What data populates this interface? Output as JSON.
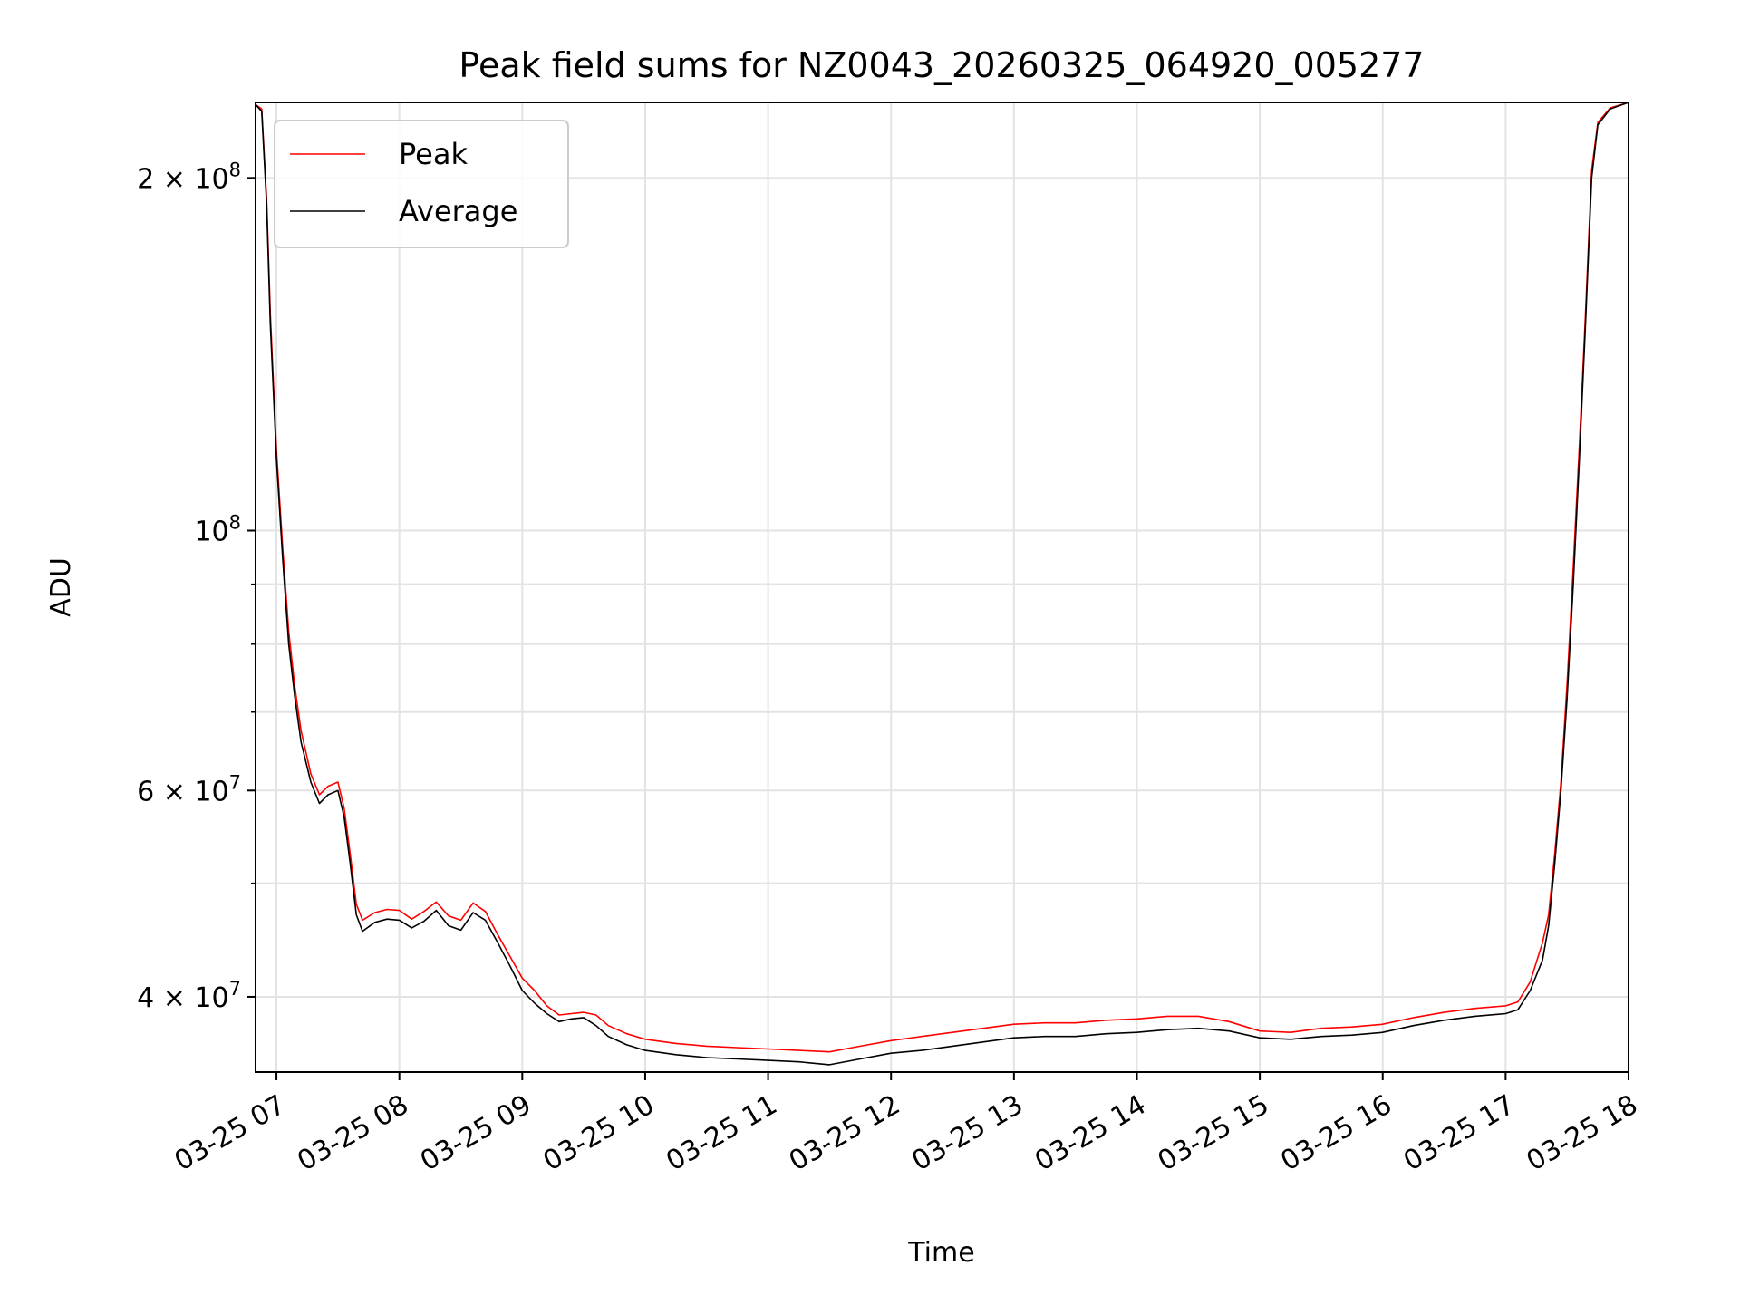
{
  "chart_data": {
    "type": "line",
    "title": "Peak field sums for NZ0043_20260325_064920_005277",
    "xlabel": "Time",
    "ylabel": "ADU",
    "yscale": "log",
    "grid": true,
    "legend_position": "upper-left",
    "x_unit": "hours (day 2026-03-25)",
    "xlim": [
      6.83,
      18.0
    ],
    "ylim": [
      34500000,
      232000000
    ],
    "x_ticks": [
      {
        "value": 7,
        "label": "03-25 07"
      },
      {
        "value": 8,
        "label": "03-25 08"
      },
      {
        "value": 9,
        "label": "03-25 09"
      },
      {
        "value": 10,
        "label": "03-25 10"
      },
      {
        "value": 11,
        "label": "03-25 11"
      },
      {
        "value": 12,
        "label": "03-25 12"
      },
      {
        "value": 13,
        "label": "03-25 13"
      },
      {
        "value": 14,
        "label": "03-25 14"
      },
      {
        "value": 15,
        "label": "03-25 15"
      },
      {
        "value": 16,
        "label": "03-25 16"
      },
      {
        "value": 17,
        "label": "03-25 17"
      },
      {
        "value": 18,
        "label": "03-25 18"
      }
    ],
    "y_major_ticks": [
      {
        "value": 40000000,
        "mantissa": "4",
        "exponent": "7"
      },
      {
        "value": 60000000,
        "mantissa": "6",
        "exponent": "7"
      },
      {
        "value": 100000000,
        "mantissa": "",
        "exponent": "8"
      },
      {
        "value": 200000000,
        "mantissa": "2",
        "exponent": "8"
      }
    ],
    "y_minor_ticks": [
      50000000,
      70000000,
      80000000,
      90000000
    ],
    "tick_base": "10",
    "tick_times": "×",
    "series": [
      {
        "name": "Average",
        "color": "#000000",
        "points": [
          [
            6.83,
            231000000
          ],
          [
            6.88,
            228000000
          ],
          [
            6.92,
            190000000
          ],
          [
            6.95,
            150000000
          ],
          [
            7.0,
            115000000
          ],
          [
            7.05,
            95000000
          ],
          [
            7.1,
            80000000
          ],
          [
            7.15,
            72000000
          ],
          [
            7.2,
            66000000
          ],
          [
            7.28,
            61000000
          ],
          [
            7.35,
            58500000
          ],
          [
            7.42,
            59500000
          ],
          [
            7.5,
            60000000
          ],
          [
            7.55,
            57000000
          ],
          [
            7.6,
            52000000
          ],
          [
            7.65,
            47000000
          ],
          [
            7.7,
            45500000
          ],
          [
            7.8,
            46300000
          ],
          [
            7.9,
            46600000
          ],
          [
            8.0,
            46500000
          ],
          [
            8.1,
            45800000
          ],
          [
            8.2,
            46400000
          ],
          [
            8.3,
            47400000
          ],
          [
            8.4,
            46000000
          ],
          [
            8.5,
            45600000
          ],
          [
            8.6,
            47200000
          ],
          [
            8.7,
            46500000
          ],
          [
            8.8,
            44500000
          ],
          [
            8.9,
            42500000
          ],
          [
            9.0,
            40500000
          ],
          [
            9.1,
            39500000
          ],
          [
            9.2,
            38700000
          ],
          [
            9.3,
            38100000
          ],
          [
            9.4,
            38300000
          ],
          [
            9.5,
            38400000
          ],
          [
            9.6,
            37800000
          ],
          [
            9.7,
            37000000
          ],
          [
            9.85,
            36400000
          ],
          [
            10.0,
            36000000
          ],
          [
            10.25,
            35700000
          ],
          [
            10.5,
            35500000
          ],
          [
            10.75,
            35400000
          ],
          [
            11.0,
            35300000
          ],
          [
            11.25,
            35200000
          ],
          [
            11.5,
            35000000
          ],
          [
            11.75,
            35400000
          ],
          [
            12.0,
            35800000
          ],
          [
            12.25,
            36000000
          ],
          [
            12.5,
            36300000
          ],
          [
            12.75,
            36600000
          ],
          [
            13.0,
            36900000
          ],
          [
            13.25,
            37000000
          ],
          [
            13.5,
            37000000
          ],
          [
            13.75,
            37200000
          ],
          [
            14.0,
            37300000
          ],
          [
            14.25,
            37500000
          ],
          [
            14.5,
            37600000
          ],
          [
            14.75,
            37400000
          ],
          [
            15.0,
            36900000
          ],
          [
            15.25,
            36800000
          ],
          [
            15.5,
            37000000
          ],
          [
            15.75,
            37100000
          ],
          [
            16.0,
            37300000
          ],
          [
            16.25,
            37800000
          ],
          [
            16.5,
            38200000
          ],
          [
            16.75,
            38500000
          ],
          [
            17.0,
            38700000
          ],
          [
            17.1,
            39000000
          ],
          [
            17.2,
            40500000
          ],
          [
            17.3,
            43000000
          ],
          [
            17.35,
            46000000
          ],
          [
            17.4,
            52000000
          ],
          [
            17.45,
            60000000
          ],
          [
            17.5,
            72000000
          ],
          [
            17.55,
            90000000
          ],
          [
            17.6,
            115000000
          ],
          [
            17.65,
            150000000
          ],
          [
            17.7,
            200000000
          ],
          [
            17.75,
            222000000
          ],
          [
            17.85,
            229000000
          ],
          [
            18.0,
            232000000
          ]
        ]
      },
      {
        "name": "Peak",
        "color": "#ff0000",
        "points": [
          [
            6.83,
            231000000
          ],
          [
            6.88,
            229000000
          ],
          [
            6.92,
            192000000
          ],
          [
            6.95,
            153000000
          ],
          [
            7.0,
            117000000
          ],
          [
            7.05,
            97000000
          ],
          [
            7.1,
            82000000
          ],
          [
            7.15,
            73500000
          ],
          [
            7.2,
            67500000
          ],
          [
            7.28,
            62000000
          ],
          [
            7.35,
            59500000
          ],
          [
            7.42,
            60500000
          ],
          [
            7.5,
            61000000
          ],
          [
            7.55,
            58000000
          ],
          [
            7.6,
            53000000
          ],
          [
            7.65,
            48000000
          ],
          [
            7.7,
            46500000
          ],
          [
            7.8,
            47200000
          ],
          [
            7.9,
            47500000
          ],
          [
            8.0,
            47400000
          ],
          [
            8.1,
            46600000
          ],
          [
            8.2,
            47300000
          ],
          [
            8.3,
            48200000
          ],
          [
            8.4,
            46900000
          ],
          [
            8.5,
            46500000
          ],
          [
            8.6,
            48100000
          ],
          [
            8.7,
            47300000
          ],
          [
            8.8,
            45200000
          ],
          [
            8.9,
            43300000
          ],
          [
            9.0,
            41500000
          ],
          [
            9.1,
            40500000
          ],
          [
            9.2,
            39300000
          ],
          [
            9.3,
            38600000
          ],
          [
            9.4,
            38700000
          ],
          [
            9.5,
            38800000
          ],
          [
            9.6,
            38600000
          ],
          [
            9.7,
            37800000
          ],
          [
            9.85,
            37200000
          ],
          [
            10.0,
            36800000
          ],
          [
            10.25,
            36500000
          ],
          [
            10.5,
            36300000
          ],
          [
            10.75,
            36200000
          ],
          [
            11.0,
            36100000
          ],
          [
            11.25,
            36000000
          ],
          [
            11.5,
            35900000
          ],
          [
            11.75,
            36300000
          ],
          [
            12.0,
            36700000
          ],
          [
            12.25,
            37000000
          ],
          [
            12.5,
            37300000
          ],
          [
            12.75,
            37600000
          ],
          [
            13.0,
            37900000
          ],
          [
            13.25,
            38000000
          ],
          [
            13.5,
            38000000
          ],
          [
            13.75,
            38200000
          ],
          [
            14.0,
            38300000
          ],
          [
            14.25,
            38500000
          ],
          [
            14.5,
            38500000
          ],
          [
            14.75,
            38100000
          ],
          [
            15.0,
            37400000
          ],
          [
            15.25,
            37300000
          ],
          [
            15.5,
            37600000
          ],
          [
            15.75,
            37700000
          ],
          [
            16.0,
            37900000
          ],
          [
            16.25,
            38400000
          ],
          [
            16.5,
            38800000
          ],
          [
            16.75,
            39100000
          ],
          [
            17.0,
            39300000
          ],
          [
            17.1,
            39600000
          ],
          [
            17.2,
            41200000
          ],
          [
            17.3,
            44500000
          ],
          [
            17.35,
            47000000
          ],
          [
            17.4,
            53000000
          ],
          [
            17.45,
            61000000
          ],
          [
            17.5,
            74000000
          ],
          [
            17.55,
            93000000
          ],
          [
            17.6,
            118000000
          ],
          [
            17.65,
            153000000
          ],
          [
            17.7,
            203000000
          ],
          [
            17.75,
            223000000
          ],
          [
            17.85,
            229500000
          ],
          [
            18.0,
            232000000
          ]
        ]
      }
    ],
    "legend": [
      {
        "label": "Peak",
        "color": "#ff0000"
      },
      {
        "label": "Average",
        "color": "#000000"
      }
    ]
  }
}
